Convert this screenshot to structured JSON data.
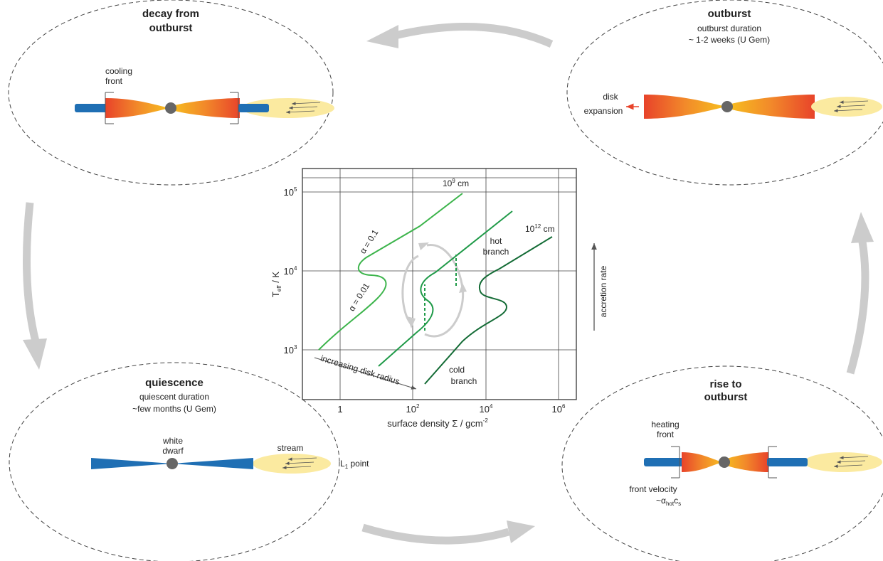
{
  "decay": {
    "title_lines": [
      "decay from",
      "outburst"
    ],
    "cooling_front": [
      "cooling",
      "front"
    ]
  },
  "outburst": {
    "title": "outburst",
    "duration": "outburst duration",
    "time": "~ 1-2 weeks (U Gem)",
    "disk_expansion": [
      "disk",
      "expansion"
    ]
  },
  "quiescence": {
    "title": "quiescence",
    "duration": "quiescent duration",
    "time": "~few months (U Gem)",
    "white_dwarf": [
      "white",
      "dwarf"
    ],
    "stream": "stream",
    "l1_point": {
      "main": "L",
      "sub": "1",
      "rest": " point"
    }
  },
  "rise": {
    "title_lines": [
      "rise to",
      "outburst"
    ],
    "heating_front": [
      "heating",
      "front"
    ],
    "front_velocity": "front velocity",
    "velocity_formula": {
      "prefix": "~α",
      "sub": "hot",
      "mid": "c",
      "sub2": "s"
    }
  },
  "plot": {
    "x_axis_label": {
      "text": "surface density Σ / gcm",
      "sup": "-2"
    },
    "y_axis_label": {
      "main": "T",
      "sub": "eff",
      "rest": " / K"
    },
    "x_ticks": [
      {
        "base": "1"
      },
      {
        "base": "10",
        "exp": "2"
      },
      {
        "base": "10",
        "exp": "4"
      },
      {
        "base": "10",
        "exp": "6"
      }
    ],
    "y_ticks": [
      {
        "base": "10",
        "exp": "5"
      },
      {
        "base": "10",
        "exp": "4"
      },
      {
        "base": "10",
        "exp": "3"
      }
    ],
    "alpha_high": "α = 0.1",
    "alpha_low": "α = 0.01",
    "radius_small": {
      "base": "10",
      "exp": "9",
      "unit": " cm"
    },
    "radius_large": {
      "base": "10",
      "exp": "12",
      "unit": " cm"
    },
    "hot_branch": [
      "hot",
      "branch"
    ],
    "cold_branch": [
      "cold",
      "branch"
    ],
    "increasing_radius": "increasing disk radius",
    "accretion_rate": "accretion rate"
  }
}
